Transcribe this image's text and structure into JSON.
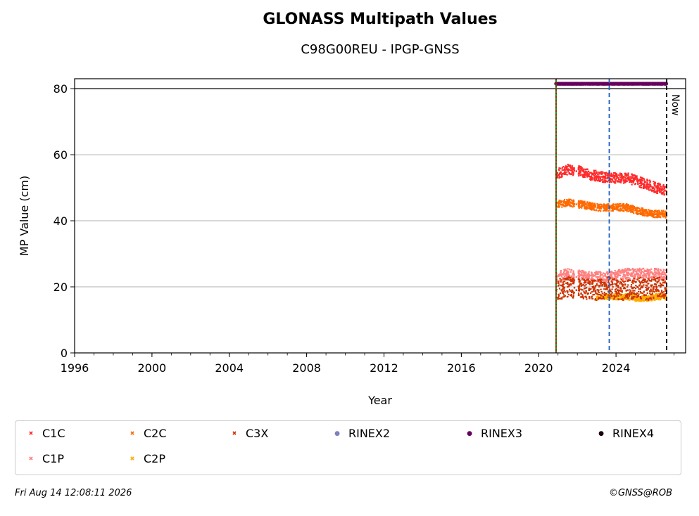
{
  "chart_data": {
    "type": "scatter",
    "title": "GLONASS Multipath Values",
    "subtitle": "C98G00REU - IPGP-GNSS",
    "xlabel": "Year",
    "ylabel": "MP Value (cm)",
    "xlim": [
      1996,
      2027.6
    ],
    "ylim": [
      0,
      83
    ],
    "xticks": [
      "1996",
      "2000",
      "2004",
      "2008",
      "2012",
      "2016",
      "2020",
      "2024"
    ],
    "yticks": [
      "0",
      "20",
      "40",
      "60",
      "80"
    ],
    "grid": "y-major",
    "now_label": "Now",
    "vertical_lines": [
      {
        "x": 2020.9,
        "color": "#008000",
        "style": "solid"
      },
      {
        "x": 2020.9,
        "color": "#cc0000",
        "style": "dotted"
      },
      {
        "x": 2023.65,
        "color": "#1f5fbf",
        "style": "dashed"
      },
      {
        "x": 2026.62,
        "color": "#000000",
        "style": "dashed"
      }
    ],
    "horizontal_line": {
      "y": 80,
      "color": "#000000"
    },
    "series": [
      {
        "name": "C1C",
        "color": "#ff2a2a",
        "marker": "x",
        "x": [
          2020.9,
          2021.5,
          2021.95,
          2022.1,
          2022.6,
          2023.1,
          2023.6,
          2024.1,
          2024.6,
          2025.1,
          2025.6,
          2026.1,
          2026.6
        ],
        "y": [
          54,
          55.5,
          55,
          55,
          54,
          53.5,
          53,
          53,
          53,
          52,
          51,
          50,
          49
        ]
      },
      {
        "name": "C2C",
        "color": "#ff6a00",
        "marker": "x",
        "x": [
          2020.9,
          2021.5,
          2021.95,
          2022.1,
          2022.6,
          2023.1,
          2023.6,
          2024.1,
          2024.6,
          2025.1,
          2025.6,
          2026.1,
          2026.6
        ],
        "y": [
          45,
          45.5,
          45,
          45,
          44.5,
          44,
          44,
          44,
          44,
          43,
          42.5,
          42,
          42
        ]
      },
      {
        "name": "C3X",
        "color": "#cc3300",
        "marker": "x",
        "x": [
          2020.9,
          2021.5,
          2021.95,
          2022.1,
          2022.6,
          2023.1,
          2023.6,
          2024.1,
          2024.6,
          2025.1,
          2025.6,
          2026.1,
          2026.6
        ],
        "y": [
          19,
          20,
          19,
          20,
          19,
          19,
          20,
          19,
          19,
          20,
          19,
          20,
          19
        ]
      },
      {
        "name": "RINEX2",
        "color": "#8080c0",
        "marker": "o",
        "x": [],
        "y": []
      },
      {
        "name": "RINEX3",
        "color": "#66005c",
        "marker": "o",
        "x": [
          2020.9,
          2021.3,
          2021.7,
          2022.1,
          2022.6,
          2023.1,
          2023.6,
          2024.1,
          2024.6,
          2025.1,
          2025.6,
          2026.1,
          2026.6
        ],
        "y": [
          81.5,
          81.5,
          81.5,
          81.5,
          81.5,
          81.5,
          81.5,
          81.5,
          81.5,
          81.5,
          81.5,
          81.5,
          81.5
        ]
      },
      {
        "name": "RINEX4",
        "color": "#1a0010",
        "marker": "o",
        "x": [],
        "y": []
      },
      {
        "name": "C1P",
        "color": "#ff8080",
        "marker": "x",
        "x": [
          2020.9,
          2021.5,
          2021.95,
          2022.1,
          2022.6,
          2023.1,
          2023.6,
          2024.1,
          2024.6,
          2025.1,
          2025.6,
          2026.1,
          2026.6
        ],
        "y": [
          23,
          24,
          23,
          23.5,
          23,
          23,
          23,
          23.5,
          24,
          24,
          24,
          24,
          23.5
        ]
      },
      {
        "name": "C2P",
        "color": "#ffaa00",
        "marker": "x",
        "x": [
          2023.0,
          2023.6,
          2024.1,
          2024.6,
          2025.1,
          2025.6,
          2026.1,
          2026.6
        ],
        "y": [
          17,
          17,
          17,
          17,
          16.5,
          16.5,
          17,
          17
        ]
      }
    ],
    "legend_position": "bottom"
  },
  "footer": {
    "timestamp": "Fri Aug 14 12:08:11 2026",
    "copyright": "©GNSS@ROB"
  }
}
